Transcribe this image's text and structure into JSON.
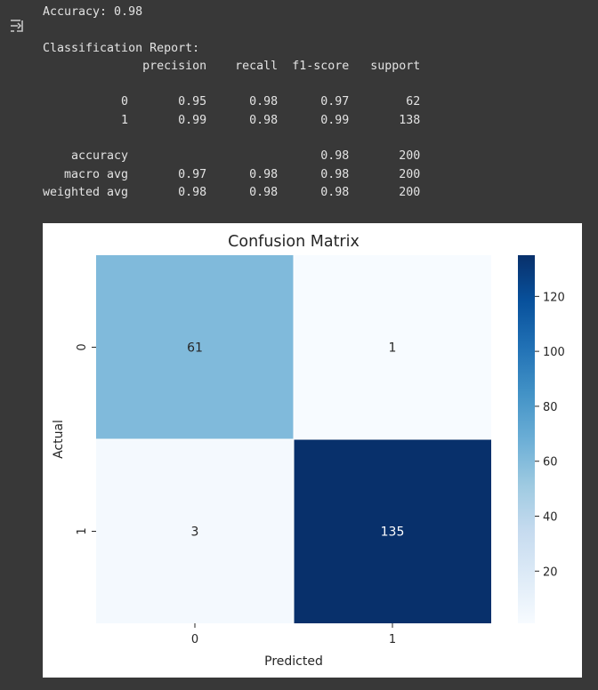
{
  "console_output": {
    "accuracy_line": "Accuracy: 0.98",
    "report_title": "Classification Report:",
    "report_lines": [
      "              precision    recall  f1-score   support",
      "",
      "           0       0.95      0.98      0.97        62",
      "           1       0.99      0.98      0.99       138",
      "",
      "    accuracy                           0.98       200",
      "   macro avg       0.97      0.98      0.98       200",
      "weighted avg       0.98      0.98      0.98       200"
    ]
  },
  "output_icon": "output-toggle-icon",
  "chart_data": {
    "type": "heatmap",
    "title": "Confusion Matrix",
    "xlabel": "Predicted",
    "ylabel": "Actual",
    "x_categories": [
      "0",
      "1"
    ],
    "y_categories": [
      "0",
      "1"
    ],
    "values": [
      [
        61,
        1
      ],
      [
        3,
        135
      ]
    ],
    "colorbar": {
      "ticks": [
        20,
        40,
        60,
        80,
        100,
        120
      ],
      "range": [
        1,
        135
      ],
      "colormap": "Blues"
    },
    "colors": {
      "low": "#f7fbff",
      "high": "#08306b"
    }
  }
}
